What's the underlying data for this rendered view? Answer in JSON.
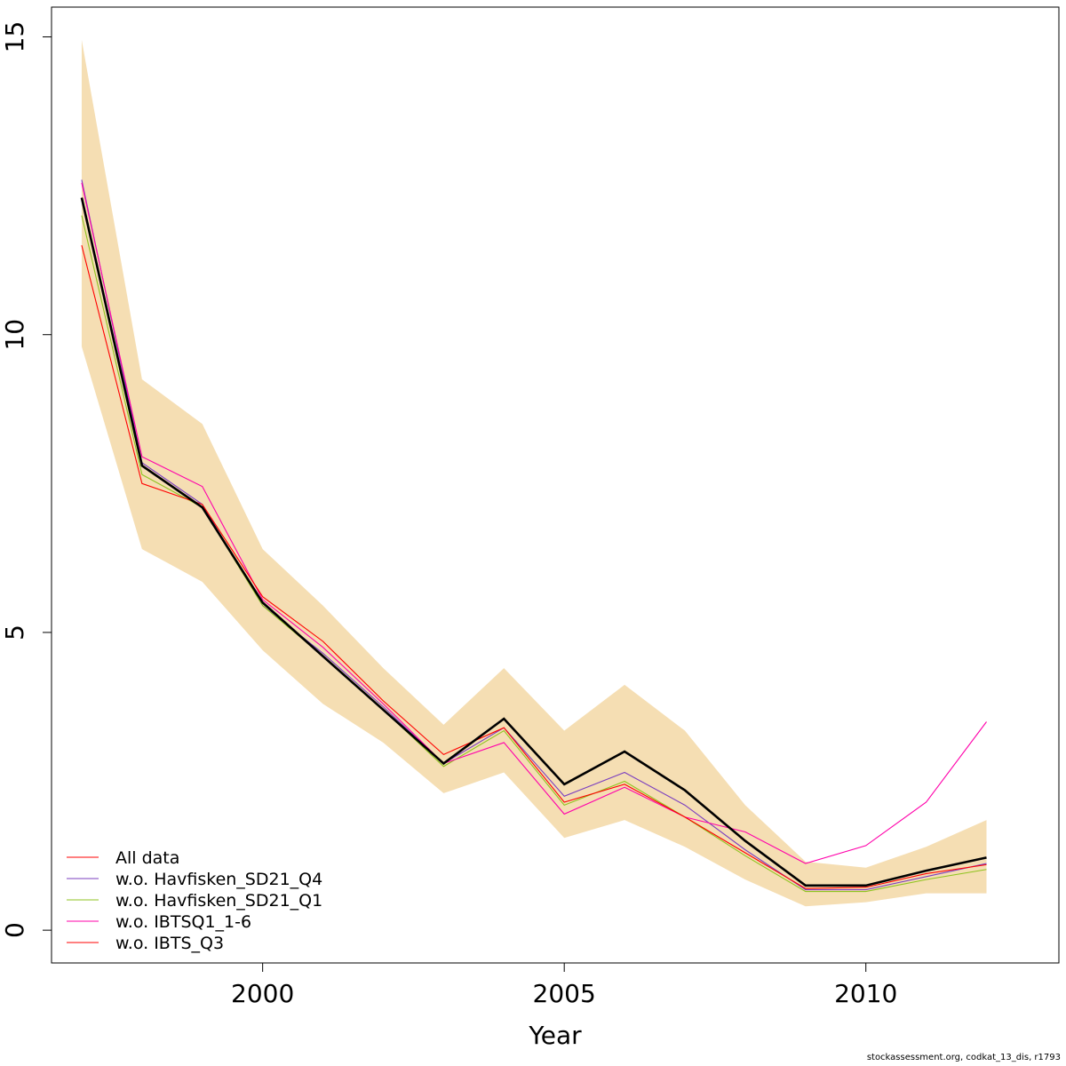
{
  "footer_text": "stockassessment.org, codkat_13_dis, r1793",
  "chart_data": {
    "type": "line",
    "title": "",
    "xlabel": "Year",
    "ylabel": "",
    "xlim": [
      1996.5,
      2013.2
    ],
    "ylim": [
      -0.55,
      15.5
    ],
    "x_ticks": [
      2000,
      2005,
      2010
    ],
    "x_tick_labels": [
      "2000",
      "2005",
      "2010"
    ],
    "y_ticks": [
      0,
      5,
      10,
      15
    ],
    "y_tick_labels": [
      "0",
      "5",
      "10",
      "15"
    ],
    "grid": false,
    "legend_placement": "bottom-left",
    "x": [
      1997,
      1998,
      1999,
      2000,
      2001,
      2002,
      2003,
      2004,
      2005,
      2006,
      2007,
      2008,
      2009,
      2010,
      2011,
      2012
    ],
    "confidence_band": {
      "color": "#f5deb3",
      "lower": [
        9.8,
        6.4,
        5.85,
        4.7,
        3.8,
        3.15,
        2.3,
        2.65,
        1.55,
        1.85,
        1.4,
        0.85,
        0.4,
        0.47,
        0.62,
        0.62
      ],
      "upper": [
        14.95,
        9.25,
        8.5,
        6.4,
        5.45,
        4.4,
        3.45,
        4.4,
        3.35,
        4.12,
        3.35,
        2.1,
        1.15,
        1.05,
        1.4,
        1.85
      ]
    },
    "main_line": {
      "color": "#000000",
      "values": [
        12.3,
        7.8,
        7.1,
        5.5,
        4.6,
        3.7,
        2.8,
        3.55,
        2.45,
        3.0,
        2.35,
        1.5,
        0.75,
        0.75,
        1.0,
        1.22
      ]
    },
    "series": [
      {
        "name": "All data",
        "color": "#ff0000",
        "values": [
          12.3,
          7.8,
          7.1,
          5.5,
          4.6,
          3.7,
          2.8,
          3.55,
          2.45,
          3.0,
          2.35,
          1.5,
          0.75,
          0.75,
          1.0,
          1.22
        ]
      },
      {
        "name": "w.o. Havfisken_SD21_Q4",
        "color": "#7b3fbf",
        "values": [
          12.6,
          7.85,
          7.15,
          5.45,
          4.65,
          3.75,
          2.8,
          3.4,
          2.25,
          2.65,
          2.1,
          1.35,
          0.68,
          0.68,
          0.9,
          1.12
        ]
      },
      {
        "name": "w.o. Havfisken_SD21_Q1",
        "color": "#8fc31f",
        "values": [
          12.0,
          7.65,
          7.1,
          5.45,
          4.6,
          3.7,
          2.75,
          3.35,
          2.1,
          2.5,
          1.9,
          1.25,
          0.65,
          0.65,
          0.85,
          1.02
        ]
      },
      {
        "name": "w.o. IBTSQ1_1-6",
        "color": "#ff00aa",
        "values": [
          12.55,
          7.95,
          7.45,
          5.55,
          4.75,
          3.8,
          2.8,
          3.15,
          1.95,
          2.4,
          1.9,
          1.65,
          1.12,
          1.42,
          2.15,
          3.5
        ]
      },
      {
        "name": "w.o. IBTS_Q3",
        "color": "#ff0000",
        "values": [
          11.5,
          7.5,
          7.15,
          5.6,
          4.85,
          3.85,
          2.95,
          3.4,
          2.15,
          2.45,
          1.9,
          1.3,
          0.7,
          0.72,
          0.95,
          1.1
        ]
      }
    ]
  }
}
